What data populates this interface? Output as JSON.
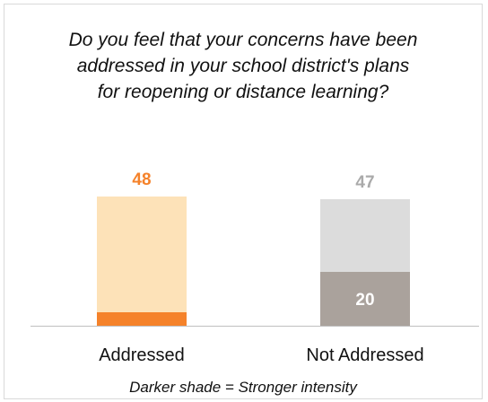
{
  "title_lines": [
    "Do you feel that your concerns have been",
    "addressed in your school district's plans",
    "for reopening or distance learning?"
  ],
  "footnote": "Darker shade = Stronger intensity",
  "colors": {
    "addressed_light": "#fde2b8",
    "addressed_dark": "#f5822a",
    "addressed_label": "#f5822a",
    "not_addressed_light": "#dcdcdc",
    "not_addressed_dark": "#aaa29c",
    "not_addressed_label": "#aaaaaa",
    "baseline": "#bfbfbf"
  },
  "chart_data": {
    "type": "bar",
    "stacked": true,
    "categories": [
      "Addressed",
      "Not Addressed"
    ],
    "totals": [
      48,
      47
    ],
    "strong_intensity": [
      5,
      20
    ],
    "strong_intensity_labels": [
      "",
      "20"
    ],
    "total_labels": [
      "48",
      "47"
    ],
    "ylim": [
      0,
      50
    ],
    "title": "Do you feel that your concerns have been addressed in your school district's plans for reopening or distance learning?",
    "footnote": "Darker shade = Stronger intensity"
  }
}
